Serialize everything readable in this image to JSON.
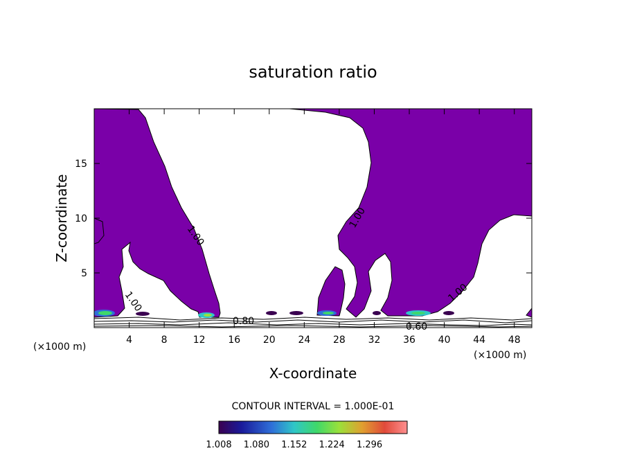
{
  "chart_data": {
    "type": "contour",
    "title": "saturation ratio",
    "xlabel": "X-coordinate",
    "ylabel": "Z-coordinate",
    "x_unit": "(×1000 m)",
    "y_unit": "(×1000 m)",
    "xlim": [
      0,
      50
    ],
    "ylim": [
      0,
      20
    ],
    "x_ticks": [
      4,
      8,
      12,
      16,
      20,
      24,
      28,
      32,
      36,
      40,
      44,
      48
    ],
    "y_ticks": [
      5,
      10,
      15
    ],
    "contour_interval_text": "CONTOUR INTERVAL = 1.000E-01",
    "contour_labels": [
      "1.00",
      "1.00",
      "1.00",
      "1.00",
      "0.80",
      "0.60"
    ],
    "colorbar": {
      "tick_labels": [
        "1.008",
        "1.080",
        "1.152",
        "1.224",
        "1.296"
      ],
      "values": [
        1.008,
        1.08,
        1.152,
        1.224,
        1.296
      ],
      "colors": [
        "#5a0066",
        "#1a1a9a",
        "#2f6fd8",
        "#2fc7c7",
        "#3fd86a",
        "#9be03a",
        "#e0a030",
        "#e04a3a",
        "#ff9090"
      ]
    },
    "saturated_fill_color": "#7a00a8",
    "regions_saturated": [
      {
        "name": "left plume",
        "x_range": [
          0,
          16
        ],
        "z_range": [
          1,
          20
        ]
      },
      {
        "name": "central blob",
        "x_range": [
          25,
          29
        ],
        "z_range": [
          1,
          5
        ]
      },
      {
        "name": "right plume",
        "x_range": [
          28,
          50
        ],
        "z_range": [
          1,
          20
        ]
      }
    ]
  }
}
